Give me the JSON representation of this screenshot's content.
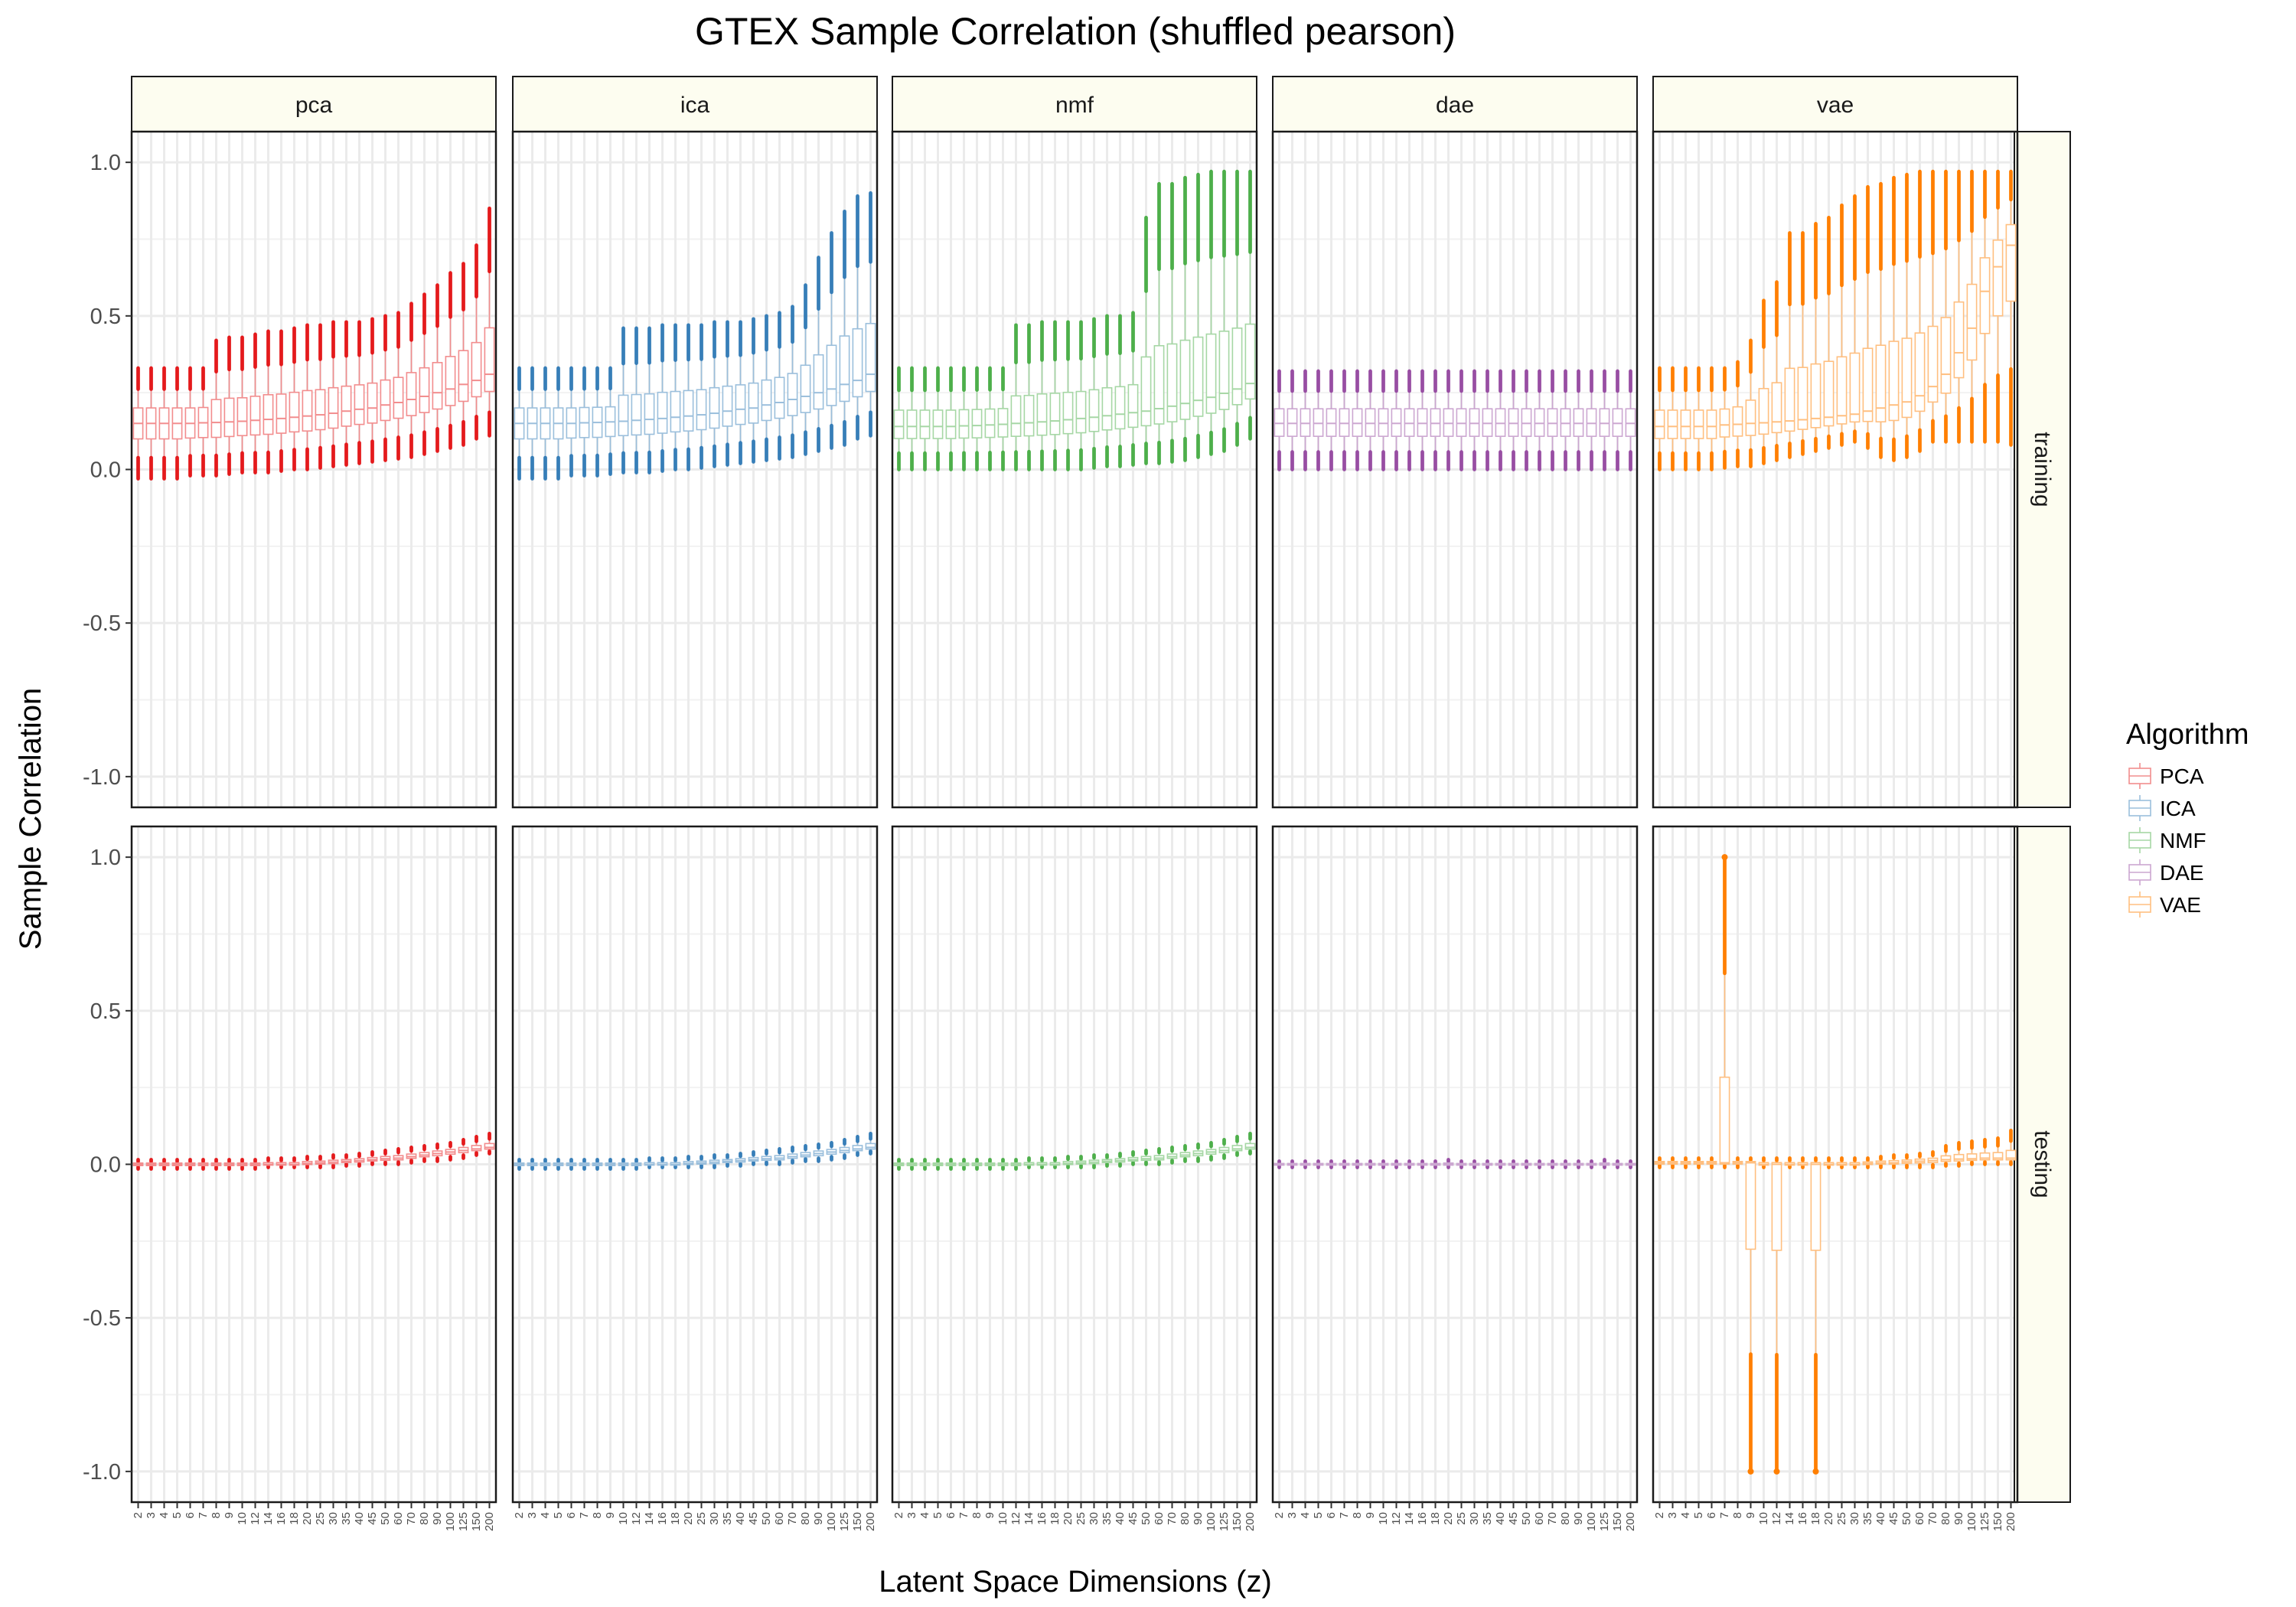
{
  "chart_data": {
    "type": "boxplot",
    "title": "GTEX Sample Correlation (shuffled pearson)",
    "xlabel": "Latent Space Dimensions (z)",
    "ylabel": "Sample Correlation",
    "ylim": [
      -1.1,
      1.1
    ],
    "yticks": [
      "-1.0",
      "-0.5",
      "0.0",
      "0.5",
      "1.0"
    ],
    "grid": true,
    "legend": {
      "title": "Algorithm",
      "placement": "right",
      "entries": [
        "PCA",
        "ICA",
        "NMF",
        "DAE",
        "VAE"
      ]
    },
    "facet_columns": [
      "pca",
      "ica",
      "nmf",
      "dae",
      "vae"
    ],
    "facet_rows": [
      "training",
      "testing"
    ],
    "categories": [
      "2",
      "3",
      "4",
      "5",
      "6",
      "7",
      "8",
      "9",
      "10",
      "12",
      "14",
      "16",
      "18",
      "20",
      "25",
      "30",
      "35",
      "40",
      "45",
      "50",
      "60",
      "70",
      "80",
      "90",
      "100",
      "125",
      "150",
      "200"
    ],
    "colors": {
      "pca": "#e41a1c",
      "ica": "#377eb8",
      "nmf": "#4daf4a",
      "dae": "#984ea3",
      "vae": "#ff7f00"
    },
    "series": [
      {
        "panel": "pca",
        "row": "training",
        "median": [
          0.15,
          0.15,
          0.15,
          0.15,
          0.15,
          0.152,
          0.153,
          0.155,
          0.157,
          0.16,
          0.163,
          0.166,
          0.17,
          0.174,
          0.178,
          0.183,
          0.19,
          0.196,
          0.2,
          0.21,
          0.218,
          0.228,
          0.238,
          0.25,
          0.262,
          0.277,
          0.29,
          0.31
        ],
        "min": [
          -0.03,
          -0.03,
          -0.03,
          -0.03,
          -0.02,
          -0.02,
          -0.02,
          -0.015,
          -0.01,
          -0.01,
          -0.01,
          -0.005,
          0.0,
          0.0,
          0.005,
          0.01,
          0.015,
          0.02,
          0.025,
          0.03,
          0.035,
          0.04,
          0.05,
          0.06,
          0.07,
          0.08,
          0.1,
          0.11
        ],
        "max": [
          0.33,
          0.33,
          0.33,
          0.33,
          0.33,
          0.33,
          0.42,
          0.43,
          0.43,
          0.44,
          0.45,
          0.45,
          0.46,
          0.47,
          0.47,
          0.48,
          0.48,
          0.48,
          0.49,
          0.5,
          0.51,
          0.54,
          0.57,
          0.6,
          0.64,
          0.67,
          0.73,
          0.85
        ]
      },
      {
        "panel": "pca",
        "row": "testing",
        "median": [
          0.0,
          0.0,
          0.0,
          0.0,
          0.0,
          0.0,
          0.0,
          0.0,
          0.0,
          0.0,
          0.0,
          0.0,
          0.0,
          0.003,
          0.005,
          0.007,
          0.01,
          0.012,
          0.015,
          0.018,
          0.02,
          0.025,
          0.03,
          0.035,
          0.04,
          0.045,
          0.05,
          0.055
        ],
        "min": [
          -0.015,
          -0.015,
          -0.015,
          -0.015,
          -0.015,
          -0.015,
          -0.015,
          -0.015,
          -0.015,
          -0.015,
          -0.01,
          -0.01,
          -0.01,
          -0.01,
          -0.01,
          -0.01,
          -0.005,
          -0.005,
          0.0,
          0.0,
          0.0,
          0.005,
          0.01,
          0.01,
          0.015,
          0.02,
          0.03,
          0.035
        ],
        "max": [
          0.015,
          0.015,
          0.015,
          0.015,
          0.015,
          0.015,
          0.015,
          0.015,
          0.015,
          0.015,
          0.02,
          0.02,
          0.02,
          0.025,
          0.025,
          0.03,
          0.03,
          0.035,
          0.04,
          0.045,
          0.05,
          0.055,
          0.06,
          0.065,
          0.07,
          0.08,
          0.09,
          0.1
        ]
      },
      {
        "panel": "ica",
        "row": "training",
        "median": [
          0.15,
          0.15,
          0.15,
          0.15,
          0.15,
          0.152,
          0.153,
          0.155,
          0.157,
          0.16,
          0.163,
          0.166,
          0.17,
          0.174,
          0.178,
          0.183,
          0.19,
          0.196,
          0.2,
          0.21,
          0.218,
          0.228,
          0.238,
          0.25,
          0.262,
          0.277,
          0.29,
          0.31
        ],
        "min": [
          -0.03,
          -0.03,
          -0.03,
          -0.03,
          -0.02,
          -0.02,
          -0.02,
          -0.015,
          -0.01,
          -0.01,
          -0.01,
          -0.005,
          0.0,
          0.0,
          0.005,
          0.01,
          0.015,
          0.02,
          0.025,
          0.03,
          0.035,
          0.04,
          0.05,
          0.06,
          0.07,
          0.08,
          0.1,
          0.11
        ],
        "max": [
          0.33,
          0.33,
          0.33,
          0.33,
          0.33,
          0.33,
          0.33,
          0.33,
          0.46,
          0.46,
          0.46,
          0.47,
          0.47,
          0.47,
          0.47,
          0.48,
          0.48,
          0.48,
          0.49,
          0.5,
          0.51,
          0.53,
          0.6,
          0.69,
          0.77,
          0.84,
          0.89,
          0.9
        ]
      },
      {
        "panel": "ica",
        "row": "testing",
        "median": [
          0.0,
          0.0,
          0.0,
          0.0,
          0.0,
          0.0,
          0.0,
          0.0,
          0.0,
          0.0,
          0.0,
          0.0,
          0.0,
          0.003,
          0.005,
          0.007,
          0.01,
          0.012,
          0.015,
          0.018,
          0.02,
          0.025,
          0.03,
          0.035,
          0.04,
          0.045,
          0.05,
          0.055
        ],
        "min": [
          -0.015,
          -0.015,
          -0.015,
          -0.015,
          -0.015,
          -0.015,
          -0.015,
          -0.015,
          -0.015,
          -0.015,
          -0.01,
          -0.01,
          -0.01,
          -0.01,
          -0.01,
          -0.01,
          -0.005,
          -0.005,
          0.0,
          0.0,
          0.0,
          0.005,
          0.01,
          0.01,
          0.015,
          0.02,
          0.03,
          0.035
        ],
        "max": [
          0.015,
          0.015,
          0.015,
          0.015,
          0.015,
          0.015,
          0.015,
          0.015,
          0.015,
          0.015,
          0.02,
          0.02,
          0.02,
          0.025,
          0.025,
          0.03,
          0.03,
          0.035,
          0.04,
          0.045,
          0.05,
          0.055,
          0.06,
          0.065,
          0.07,
          0.08,
          0.09,
          0.1
        ]
      },
      {
        "panel": "nmf",
        "row": "training",
        "median": [
          0.14,
          0.14,
          0.14,
          0.14,
          0.14,
          0.142,
          0.143,
          0.145,
          0.147,
          0.15,
          0.152,
          0.155,
          0.158,
          0.162,
          0.166,
          0.17,
          0.175,
          0.18,
          0.185,
          0.19,
          0.198,
          0.206,
          0.215,
          0.225,
          0.235,
          0.248,
          0.262,
          0.28
        ],
        "min": [
          0.0,
          0.0,
          0.0,
          0.0,
          0.0,
          0.0,
          0.0,
          0.0,
          0.0,
          0.0,
          0.0,
          0.0,
          0.0,
          0.0,
          0.0,
          0.005,
          0.01,
          0.01,
          0.015,
          0.02,
          0.02,
          0.025,
          0.03,
          0.04,
          0.05,
          0.06,
          0.08,
          0.1
        ],
        "max": [
          0.33,
          0.33,
          0.33,
          0.33,
          0.33,
          0.33,
          0.33,
          0.33,
          0.33,
          0.47,
          0.47,
          0.48,
          0.48,
          0.48,
          0.48,
          0.49,
          0.5,
          0.5,
          0.51,
          0.82,
          0.93,
          0.93,
          0.95,
          0.96,
          0.97,
          0.97,
          0.97,
          0.97
        ]
      },
      {
        "panel": "nmf",
        "row": "testing",
        "median": [
          0.0,
          0.0,
          0.0,
          0.0,
          0.0,
          0.0,
          0.0,
          0.0,
          0.0,
          0.0,
          0.0,
          0.0,
          0.0,
          0.003,
          0.005,
          0.007,
          0.01,
          0.012,
          0.015,
          0.018,
          0.02,
          0.025,
          0.03,
          0.035,
          0.04,
          0.045,
          0.05,
          0.055
        ],
        "min": [
          -0.015,
          -0.015,
          -0.015,
          -0.015,
          -0.015,
          -0.015,
          -0.015,
          -0.015,
          -0.015,
          -0.015,
          -0.01,
          -0.01,
          -0.01,
          -0.01,
          -0.01,
          -0.01,
          -0.005,
          -0.005,
          0.0,
          0.0,
          0.0,
          0.005,
          0.01,
          0.01,
          0.015,
          0.02,
          0.03,
          0.035
        ],
        "max": [
          0.015,
          0.015,
          0.015,
          0.015,
          0.015,
          0.015,
          0.015,
          0.015,
          0.015,
          0.015,
          0.02,
          0.02,
          0.02,
          0.025,
          0.025,
          0.03,
          0.03,
          0.035,
          0.04,
          0.045,
          0.05,
          0.055,
          0.06,
          0.065,
          0.07,
          0.08,
          0.09,
          0.1
        ]
      },
      {
        "panel": "dae",
        "row": "training",
        "median": [
          0.15,
          0.15,
          0.15,
          0.15,
          0.15,
          0.15,
          0.15,
          0.15,
          0.15,
          0.15,
          0.15,
          0.15,
          0.15,
          0.15,
          0.15,
          0.15,
          0.15,
          0.15,
          0.15,
          0.15,
          0.15,
          0.15,
          0.15,
          0.15,
          0.15,
          0.15,
          0.15,
          0.15
        ],
        "min": [
          0.0,
          0.0,
          0.0,
          0.0,
          0.0,
          0.0,
          0.0,
          0.0,
          0.0,
          0.0,
          0.0,
          0.0,
          0.0,
          0.0,
          0.0,
          0.0,
          0.0,
          0.0,
          0.0,
          0.0,
          0.0,
          0.0,
          0.0,
          0.0,
          0.0,
          0.0,
          0.0,
          0.0
        ],
        "max": [
          0.32,
          0.32,
          0.32,
          0.32,
          0.32,
          0.32,
          0.32,
          0.32,
          0.32,
          0.32,
          0.32,
          0.32,
          0.32,
          0.32,
          0.32,
          0.32,
          0.32,
          0.32,
          0.32,
          0.32,
          0.32,
          0.32,
          0.32,
          0.32,
          0.32,
          0.32,
          0.32,
          0.32
        ]
      },
      {
        "panel": "dae",
        "row": "testing",
        "median": [
          0.0,
          0.0,
          0.0,
          0.0,
          0.0,
          0.0,
          0.0,
          0.0,
          0.0,
          0.0,
          0.0,
          0.0,
          0.0,
          0.0,
          0.0,
          0.0,
          0.0,
          0.0,
          0.0,
          0.0,
          0.0,
          0.0,
          0.0,
          0.0,
          0.0,
          0.0,
          0.0,
          0.0
        ],
        "min": [
          -0.01,
          -0.01,
          -0.01,
          -0.01,
          -0.01,
          -0.01,
          -0.01,
          -0.01,
          -0.01,
          -0.01,
          -0.01,
          -0.01,
          -0.01,
          -0.01,
          -0.01,
          -0.01,
          -0.01,
          -0.01,
          -0.01,
          -0.01,
          -0.01,
          -0.01,
          -0.01,
          -0.01,
          -0.01,
          -0.01,
          -0.01,
          -0.01
        ],
        "max": [
          0.01,
          0.01,
          0.01,
          0.01,
          0.01,
          0.01,
          0.01,
          0.01,
          0.01,
          0.01,
          0.01,
          0.01,
          0.01,
          0.015,
          0.01,
          0.01,
          0.01,
          0.01,
          0.01,
          0.01,
          0.01,
          0.01,
          0.01,
          0.01,
          0.01,
          0.015,
          0.01,
          0.01
        ]
      },
      {
        "panel": "vae",
        "row": "training",
        "median": [
          0.14,
          0.14,
          0.14,
          0.14,
          0.14,
          0.145,
          0.147,
          0.15,
          0.152,
          0.155,
          0.158,
          0.162,
          0.166,
          0.17,
          0.175,
          0.18,
          0.19,
          0.2,
          0.21,
          0.22,
          0.24,
          0.27,
          0.31,
          0.38,
          0.46,
          0.58,
          0.66,
          0.73
        ],
        "min": [
          0.0,
          0.0,
          0.0,
          0.0,
          0.0,
          0.005,
          0.01,
          0.01,
          0.02,
          0.03,
          0.04,
          0.05,
          0.06,
          0.07,
          0.08,
          0.09,
          0.07,
          0.04,
          0.03,
          0.04,
          0.06,
          0.09,
          0.09,
          0.09,
          0.09,
          0.09,
          0.09,
          0.08
        ],
        "max": [
          0.33,
          0.33,
          0.33,
          0.33,
          0.33,
          0.33,
          0.35,
          0.42,
          0.55,
          0.61,
          0.77,
          0.77,
          0.8,
          0.82,
          0.86,
          0.89,
          0.92,
          0.93,
          0.95,
          0.96,
          0.97,
          0.97,
          0.97,
          0.97,
          0.97,
          0.97,
          0.97,
          0.97
        ]
      },
      {
        "panel": "vae",
        "row": "testing",
        "median": [
          0.005,
          0.005,
          0.005,
          0.005,
          0.005,
          0.005,
          0.005,
          0.005,
          0.0,
          0.0,
          0.0,
          0.0,
          0.0,
          0.0,
          0.0,
          0.0,
          0.003,
          0.005,
          0.005,
          0.008,
          0.01,
          0.012,
          0.015,
          0.017,
          0.018,
          0.02,
          0.02,
          0.02
        ],
        "min": [
          -0.01,
          -0.01,
          -0.01,
          -0.01,
          -0.01,
          -0.01,
          -0.01,
          -1.0,
          -0.01,
          -1.0,
          -0.01,
          -0.01,
          -1.0,
          -0.01,
          -0.01,
          -0.01,
          -0.01,
          -0.01,
          -0.01,
          -0.01,
          -0.01,
          -0.01,
          -0.005,
          -0.005,
          0.0,
          0.0,
          0.0,
          0.0
        ],
        "max": [
          0.02,
          0.02,
          0.02,
          0.02,
          0.02,
          1.0,
          0.02,
          0.02,
          0.02,
          0.02,
          0.02,
          0.02,
          0.02,
          0.02,
          0.02,
          0.02,
          0.02,
          0.025,
          0.03,
          0.03,
          0.035,
          0.04,
          0.06,
          0.07,
          0.075,
          0.08,
          0.085,
          0.11
        ]
      }
    ]
  }
}
